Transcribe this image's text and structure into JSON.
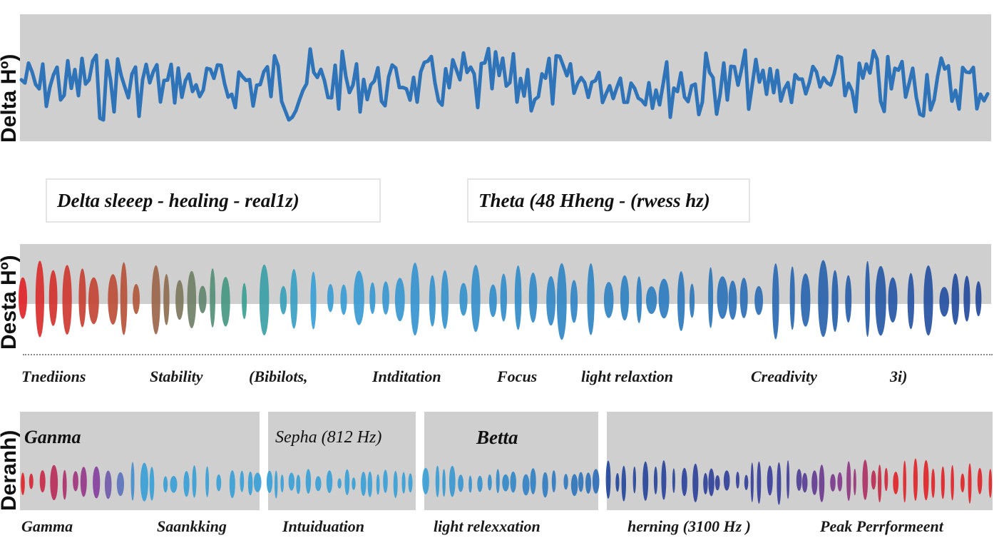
{
  "panels": {
    "top_ylabel": "Delta Hº)",
    "middle_ylabel": "Desta Hº)",
    "bottom_ylabel": "Deranh)"
  },
  "boxes": {
    "delta": "Delta sleeep - healing  - real1z)",
    "theta": "Theta (48 Hheng - (rwess hz)"
  },
  "middle_captions": [
    "Tnediions",
    "Stability",
    "(Bibilots,",
    "Intditation",
    "Focus",
    "light  relaxtion",
    "Creadivity",
    "3i)"
  ],
  "bottom_titles": {
    "gamma": "Ganma",
    "sepha": "Sepha (812 Hz)",
    "betta": "Betta"
  },
  "bottom_captions": [
    "Gamma",
    "Saankking",
    "Intuiduation",
    "light   relexxation",
    "herning (3100  Hz )",
    "Peak  Perrformeent"
  ],
  "colors": {
    "wave_blue": "#2f74b8",
    "panel_gray": "#cfcfcf",
    "red": "#e0252a",
    "dark_blue": "#23479a",
    "light_blue": "#3a9fd6"
  }
}
